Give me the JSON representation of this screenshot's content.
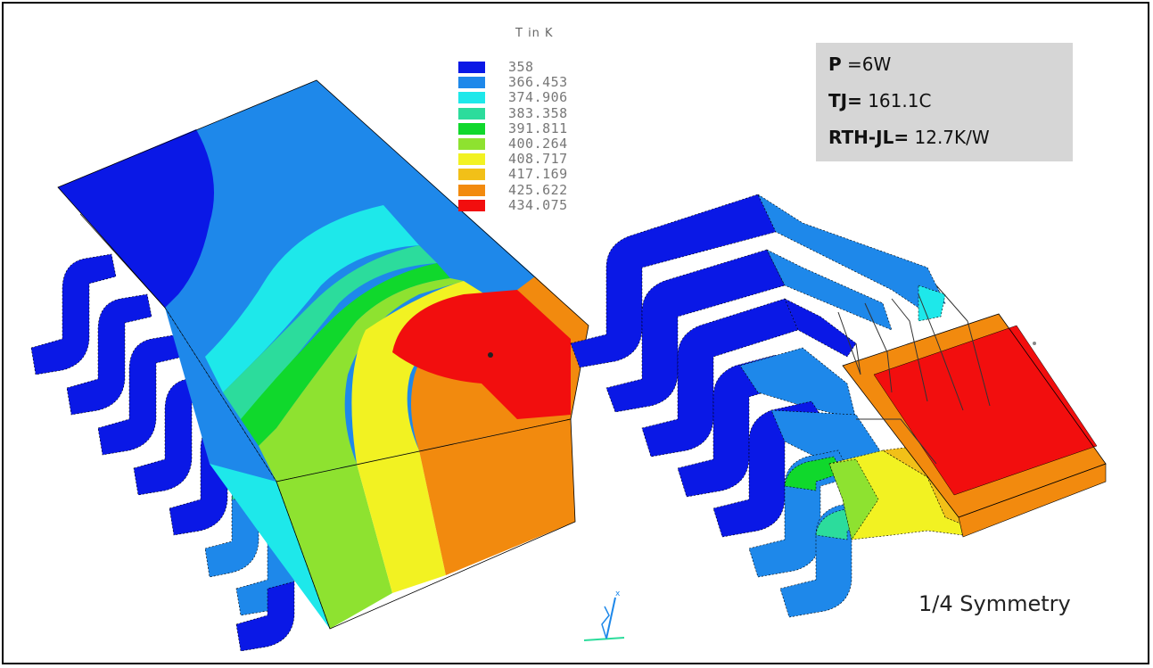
{
  "legend": {
    "title": "T in K",
    "entries": [
      {
        "value": "358",
        "color": "#0a18e6"
      },
      {
        "value": "366.453",
        "color": "#1e88ea"
      },
      {
        "value": "374.906",
        "color": "#1ee8ea"
      },
      {
        "value": "383.358",
        "color": "#2cdc9c"
      },
      {
        "value": "391.811",
        "color": "#10d82c"
      },
      {
        "value": "400.264",
        "color": "#8ee230"
      },
      {
        "value": "408.717",
        "color": "#f2f222"
      },
      {
        "value": "417.169",
        "color": "#f2c018"
      },
      {
        "value": "425.622",
        "color": "#f28a0e"
      },
      {
        "value": "434.075",
        "color": "#f20e0e"
      }
    ]
  },
  "info": {
    "power_symbol": "P",
    "power_value": " =6W",
    "tj_symbol": "TJ=",
    "tj_value": " 161.1C",
    "rth_symbol": "RTH-JL=",
    "rth_value": " 12.7K/W"
  },
  "symmetry_label": "1/4 Symmetry"
}
